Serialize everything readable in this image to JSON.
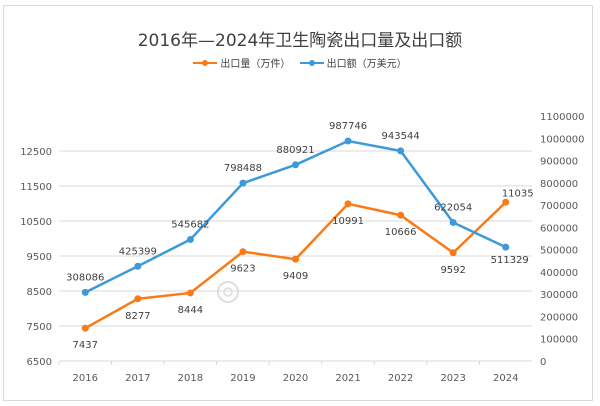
{
  "chart_data": {
    "type": "line",
    "title": "2016年—2024年卫生陶瓷出口量及出口额",
    "categories": [
      "2016",
      "2017",
      "2018",
      "2019",
      "2020",
      "2021",
      "2022",
      "2023",
      "2024"
    ],
    "series": [
      {
        "name": "出口量（万件）",
        "axis": "left",
        "color": "#F97A16",
        "values": [
          7437,
          8277,
          8444,
          9623,
          9409,
          10991,
          10666,
          9592,
          11035
        ]
      },
      {
        "name": "出口额（万美元）",
        "axis": "right",
        "color": "#3D9AD9",
        "values": [
          308086,
          425399,
          545682,
          798488,
          880921,
          987746,
          943544,
          622054,
          511329
        ]
      }
    ],
    "left_axis": {
      "ticks": [
        6500,
        7500,
        8500,
        9500,
        10500,
        11500,
        12500
      ],
      "range": [
        6500,
        13500
      ]
    },
    "right_axis": {
      "ticks": [
        0,
        100000,
        200000,
        300000,
        400000,
        500000,
        600000,
        700000,
        800000,
        900000,
        1000000,
        1100000
      ],
      "range": [
        0,
        1100000
      ]
    },
    "grid": true,
    "legend": "top"
  },
  "watermark": "中国建筑卫生陶瓷协会 CHINA BUILDING CERAMICS & SANITARYWARE ASSOCIATION"
}
